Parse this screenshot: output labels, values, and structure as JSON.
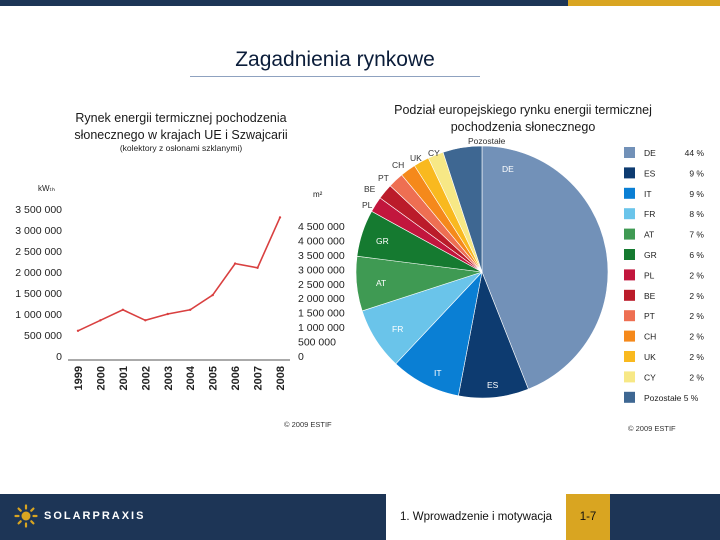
{
  "slide": {
    "title": "Zagadnienia rynkowe",
    "footer_title": "1. Wprowadzenie i motywacja",
    "page": "1-7",
    "logo": "SOLARPRAXIS"
  },
  "colors": {
    "header_bar": "#1d3556",
    "accent": "#d9a521",
    "line": "#d94040"
  },
  "chart_data": [
    {
      "type": "line",
      "title": "Rynek energii termicznej pochodzenia słonecznego w krajach UE i Szwajcarii",
      "subtitle": "(kolektory z osłonami szklanymi)",
      "copyright": "© 2009 ESTIF",
      "x": [
        "1999",
        "2000",
        "2001",
        "2002",
        "2003",
        "2004",
        "2005",
        "2006",
        "2007",
        "2008"
      ],
      "series": [
        {
          "values": [
            600000,
            850000,
            1100000,
            850000,
            1000000,
            1100000,
            1450000,
            2200000,
            2100000,
            3300000
          ]
        }
      ],
      "y_axes": [
        {
          "label": "kWₜₕ",
          "ticks": [
            "3 500 000",
            "3 000 000",
            "2 500 000",
            "2 000 000",
            "1 500 000",
            "1 000 000",
            "500 000",
            "0"
          ],
          "ylim": [
            0,
            3500000
          ]
        },
        {
          "label": "m²",
          "ticks": [
            "4 500 000",
            "4 000 000",
            "3 500 000",
            "3 000 000",
            "2 500 000",
            "2 000 000",
            "1 500 000",
            "1 000 000",
            "500 000",
            "0"
          ],
          "ylim": [
            0,
            4500000
          ]
        }
      ],
      "grid": false
    },
    {
      "type": "pie",
      "title": "Podział europejskiego rynku energii termicznej pochodzenia słonecznego",
      "copyright": "© 2009 ESTIF",
      "legend": "right",
      "slices": [
        {
          "code": "DE",
          "value": 44,
          "label": "44 %",
          "color": "#7291b8"
        },
        {
          "code": "ES",
          "value": 9,
          "label": "9 %",
          "color": "#0d3b70"
        },
        {
          "code": "IT",
          "value": 9,
          "label": "9 %",
          "color": "#0a7fd4"
        },
        {
          "code": "FR",
          "value": 8,
          "label": "8 %",
          "color": "#6ac4ea"
        },
        {
          "code": "AT",
          "value": 7,
          "label": "7 %",
          "color": "#3f9a53"
        },
        {
          "code": "GR",
          "value": 6,
          "label": "6 %",
          "color": "#157a30"
        },
        {
          "code": "PL",
          "value": 2,
          "label": "2 %",
          "color": "#c2163d"
        },
        {
          "code": "BE",
          "value": 2,
          "label": "2 %",
          "color": "#bb1c2a"
        },
        {
          "code": "PT",
          "value": 2,
          "label": "2 %",
          "color": "#ee6f52"
        },
        {
          "code": "CH",
          "value": 2,
          "label": "2 %",
          "color": "#f5891b"
        },
        {
          "code": "UK",
          "value": 2,
          "label": "2 %",
          "color": "#f9b91f"
        },
        {
          "code": "CY",
          "value": 2,
          "label": "2 %",
          "color": "#f7e886"
        },
        {
          "code": "Pozostałe",
          "value": 5,
          "label": "5 %",
          "color": "#3e6792"
        }
      ]
    }
  ]
}
